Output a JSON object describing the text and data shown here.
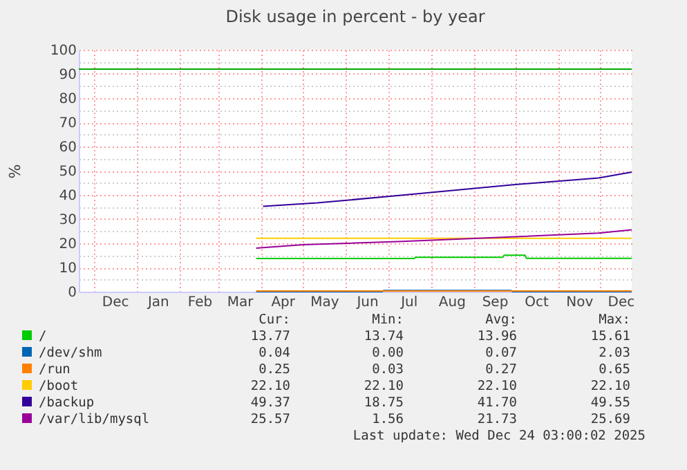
{
  "chart_data": {
    "type": "line",
    "title": "Disk usage in percent - by year",
    "ylabel": "%",
    "xlim": [
      "2024-11-20",
      "2025-12-24"
    ],
    "xticks": [
      {
        "value": "2024-12-01",
        "label": null
      },
      {
        "value": "2024-12-16",
        "label": "Dec"
      },
      {
        "value": "2025-01-01",
        "label": null
      },
      {
        "value": "2025-01-16",
        "label": "Jan"
      },
      {
        "value": "2025-02-01",
        "label": null
      },
      {
        "value": "2025-02-15",
        "label": "Feb"
      },
      {
        "value": "2025-03-01",
        "label": null
      },
      {
        "value": "2025-03-16",
        "label": "Mar"
      },
      {
        "value": "2025-04-01",
        "label": null
      },
      {
        "value": "2025-04-16",
        "label": "Apr"
      },
      {
        "value": "2025-05-01",
        "label": null
      },
      {
        "value": "2025-05-16",
        "label": "May"
      },
      {
        "value": "2025-06-01",
        "label": null
      },
      {
        "value": "2025-06-16",
        "label": "Jun"
      },
      {
        "value": "2025-07-01",
        "label": null
      },
      {
        "value": "2025-07-16",
        "label": "Jul"
      },
      {
        "value": "2025-08-01",
        "label": null
      },
      {
        "value": "2025-08-16",
        "label": "Aug"
      },
      {
        "value": "2025-09-01",
        "label": null
      },
      {
        "value": "2025-09-16",
        "label": "Sep"
      },
      {
        "value": "2025-10-01",
        "label": null
      },
      {
        "value": "2025-10-16",
        "label": "Oct"
      },
      {
        "value": "2025-11-01",
        "label": null
      },
      {
        "value": "2025-11-16",
        "label": "Nov"
      },
      {
        "value": "2025-12-01",
        "label": null
      },
      {
        "value": "2025-12-16",
        "label": "Dec"
      }
    ],
    "ylim": [
      0,
      100
    ],
    "yticks": [
      0,
      {
        "value": 5,
        "label": null
      },
      10,
      {
        "value": 15,
        "label": null
      },
      20,
      {
        "value": 25,
        "label": null
      },
      30,
      {
        "value": 35,
        "label": null
      },
      40,
      {
        "value": 45,
        "label": null
      },
      50,
      {
        "value": 55,
        "label": null
      },
      60,
      {
        "value": 65,
        "label": null
      },
      70,
      {
        "value": 75,
        "label": null
      },
      80,
      {
        "value": 85,
        "label": null
      },
      90,
      {
        "value": 95,
        "label": null
      },
      100
    ],
    "grid": true,
    "legend": "bottom",
    "line_style": "solid",
    "ref_lines": [
      {
        "axis": "y",
        "value": 92,
        "color": "#00aa00"
      }
    ],
    "series": [
      {
        "name": "/",
        "color": "#00cc00",
        "x": [
          "2025-03-28",
          "2025-07-20",
          "2025-07-21",
          "2025-09-22",
          "2025-09-23",
          "2025-10-08",
          "2025-10-09",
          "2025-12-24"
        ],
        "values": [
          13.7,
          13.7,
          14.2,
          14.2,
          15.1,
          15.1,
          13.8,
          13.8
        ]
      },
      {
        "name": "/dev/shm",
        "color": "#0066b3",
        "x": [
          "2025-03-28",
          "2025-06-27",
          "2025-06-28",
          "2025-09-28",
          "2025-09-29",
          "2025-12-24"
        ],
        "values": [
          0,
          0,
          0.5,
          0.5,
          0,
          0
        ]
      },
      {
        "name": "/run",
        "color": "#ff8000",
        "x": [
          "2025-03-28",
          "2025-12-24"
        ],
        "values": [
          0.3,
          0.3
        ]
      },
      {
        "name": "/boot",
        "color": "#ffcc00",
        "x": [
          "2025-03-28",
          "2025-12-24"
        ],
        "values": [
          22.1,
          22.1
        ]
      },
      {
        "name": "/backup",
        "color": "#330099",
        "x": [
          "2025-04-02",
          "2025-05-11",
          "2025-07-12",
          "2025-10-01",
          "2025-11-30",
          "2025-12-24"
        ],
        "values": [
          35.3,
          36.7,
          39.9,
          44.3,
          47.0,
          49.4
        ]
      },
      {
        "name": "/var/lib/mysql",
        "color": "#990099",
        "x": [
          "2025-03-28",
          "2025-05-01",
          "2025-07-12",
          "2025-10-01",
          "2025-11-30",
          "2025-12-24"
        ],
        "values": [
          18.0,
          19.4,
          20.8,
          22.7,
          24.2,
          25.6
        ]
      }
    ],
    "annotations": [
      "Cur:",
      "Min:",
      "Avg:",
      "Max:",
      "13.77",
      "13.74",
      "13.96",
      "15.61",
      "0.04",
      "0.00",
      "0.07",
      "2.03",
      "0.25",
      "0.03",
      "0.27",
      "0.65",
      "22.10",
      "22.10",
      "22.10",
      "22.10",
      "49.37",
      "18.75",
      "41.70",
      "49.55",
      "25.57",
      "1.56",
      "21.73",
      "25.69",
      "Last update: Wed Dec 24 03:00:02 2025"
    ]
  }
}
